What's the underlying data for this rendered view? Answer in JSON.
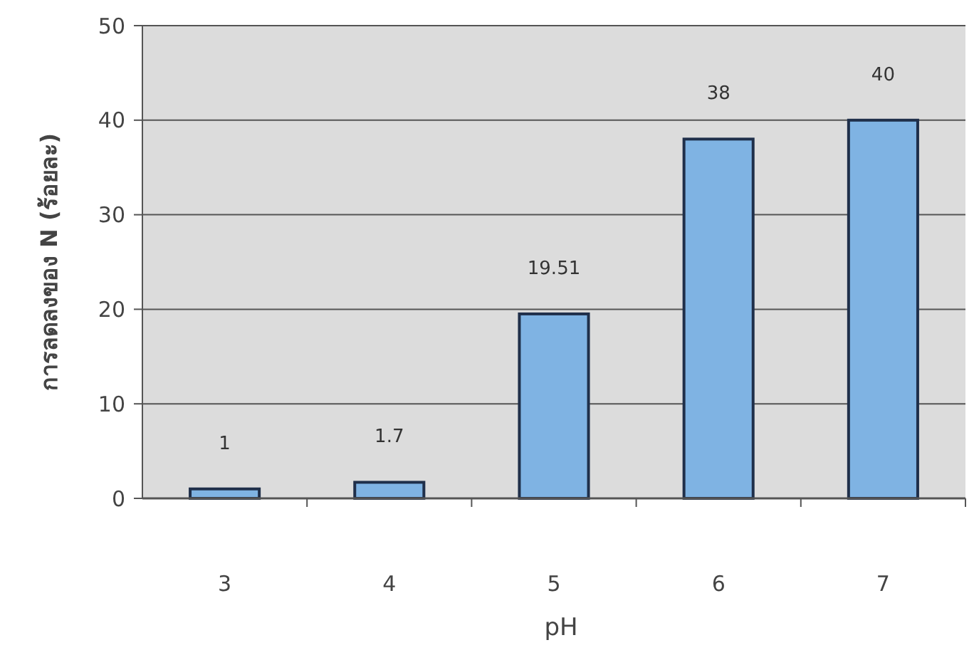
{
  "chart_data": {
    "type": "bar",
    "xlabel": "pH",
    "ylabel": "การลดลงของ N (ร้อยละ)",
    "categories": [
      "3",
      "4",
      "5",
      "6",
      "7"
    ],
    "values": [
      1,
      1.7,
      19.51,
      38,
      40
    ],
    "color": "#7fb3e3",
    "ylim": [
      0,
      50
    ],
    "yticks": [
      0,
      10,
      20,
      30,
      40,
      50
    ],
    "grid": "y",
    "data_labels": true
  }
}
